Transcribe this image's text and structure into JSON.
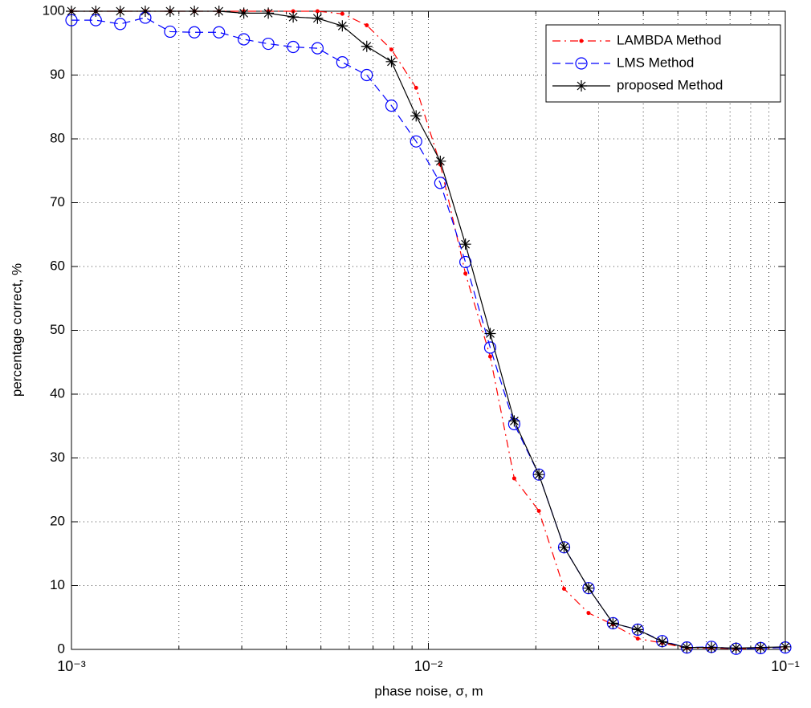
{
  "chart_data": {
    "type": "line",
    "x_label": "phase noise, σ, m",
    "y_label": "percentage correct, %",
    "xscale": "log",
    "xlim": [
      0.001,
      0.1
    ],
    "xticks": [
      {
        "value": 0.001,
        "label": "10⁻³"
      },
      {
        "value": 0.01,
        "label": "10⁻²"
      },
      {
        "value": 0.1,
        "label": "10⁻¹"
      }
    ],
    "xminorticks": [
      0.002,
      0.003,
      0.004,
      0.005,
      0.006,
      0.007,
      0.008,
      0.009,
      0.02,
      0.03,
      0.04,
      0.05,
      0.06,
      0.07,
      0.08,
      0.09
    ],
    "ylim": [
      0,
      100
    ],
    "yticks": [
      0,
      10,
      20,
      30,
      40,
      50,
      60,
      70,
      80,
      90,
      100
    ],
    "grid": true,
    "legend": "top-right",
    "x": [
      0.001,
      0.00117,
      0.00137,
      0.00161,
      0.00189,
      0.00221,
      0.00259,
      0.00304,
      0.00356,
      0.00418,
      0.00489,
      0.00574,
      0.00672,
      0.00788,
      0.00924,
      0.0108,
      0.0127,
      0.0149,
      0.0174,
      0.0204,
      0.024,
      0.0281,
      0.0329,
      0.0386,
      0.0452,
      0.053,
      0.0621,
      0.0728,
      0.0853,
      0.1
    ],
    "series": [
      {
        "name": "LAMBDA Method",
        "color": "#ff0000",
        "linestyle": "dashdot",
        "marker": "dot",
        "values": [
          100,
          100,
          100,
          100,
          100,
          100,
          100,
          100,
          100,
          100,
          100,
          99.6,
          97.8,
          94.0,
          88.0,
          76.0,
          58.9,
          45.9,
          26.8,
          21.7,
          9.5,
          5.7,
          3.9,
          1.7,
          1.0,
          0.2,
          0.2,
          0.1,
          0.2,
          0.3
        ]
      },
      {
        "name": "LMS Method",
        "color": "#0000ff",
        "linestyle": "dashed",
        "marker": "circle",
        "values": [
          98.6,
          98.6,
          98.0,
          99.0,
          96.8,
          96.7,
          96.7,
          95.6,
          94.9,
          94.4,
          94.2,
          92.0,
          90.0,
          85.2,
          79.6,
          73.1,
          60.7,
          47.3,
          35.3,
          27.4,
          16.0,
          9.6,
          4.1,
          3.1,
          1.3,
          0.3,
          0.4,
          0.1,
          0.2,
          0.3
        ]
      },
      {
        "name": "proposed Method",
        "color": "#000000",
        "linestyle": "solid",
        "marker": "star",
        "values": [
          100,
          100,
          100,
          100,
          100,
          100,
          100,
          99.7,
          99.7,
          99.1,
          98.9,
          97.7,
          94.5,
          92.1,
          83.6,
          76.5,
          63.5,
          49.5,
          35.8,
          27.4,
          16.0,
          9.6,
          4.1,
          3.1,
          1.2,
          0.3,
          0.3,
          0.2,
          0.3,
          0.4
        ]
      }
    ]
  }
}
